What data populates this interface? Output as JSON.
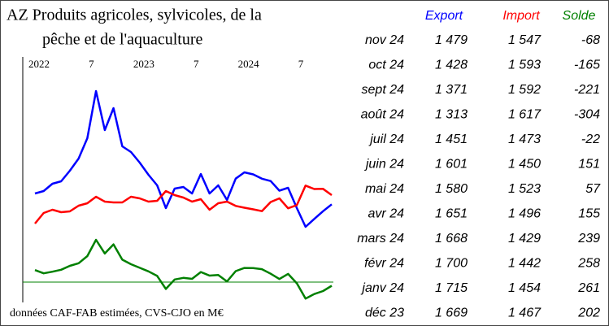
{
  "chart_data": {
    "type": "line",
    "title": [
      "AZ Produits agricoles, sylvicoles, de la",
      "pêche et de l'aquaculture"
    ],
    "note": "données CAF-FAB estimées, CVS-CJO en M€",
    "x": [
      "2022-01",
      "2022-02",
      "2022-03",
      "2022-04",
      "2022-05",
      "2022-06",
      "2022-07",
      "2022-08",
      "2022-09",
      "2022-10",
      "2022-11",
      "2022-12",
      "2023-01",
      "2023-02",
      "2023-03",
      "2023-04",
      "2023-05",
      "2023-06",
      "2023-07",
      "2023-08",
      "2023-09",
      "2023-10",
      "2023-11",
      "2023-12",
      "2024-01",
      "2024-02",
      "2024-03",
      "2024-04",
      "2024-05",
      "2024-06",
      "2024-07",
      "2024-08",
      "2024-09",
      "2024-10",
      "2024-11"
    ],
    "xticks": [
      {
        "value": "2022-01",
        "label": "2022"
      },
      {
        "value": "2022-07",
        "label": "7"
      },
      {
        "value": "2023-01",
        "label": "2023"
      },
      {
        "value": "2023-07",
        "label": "7"
      },
      {
        "value": "2024-01",
        "label": "2024"
      },
      {
        "value": "2024-07",
        "label": "7"
      }
    ],
    "ylim": [
      767,
      2477
    ],
    "y2lim": [
      -345,
      3930
    ],
    "series": [
      {
        "name": "Export",
        "color": "#0000ff",
        "values": [
          1559,
          1577,
          1631,
          1649,
          1727,
          1817,
          1967,
          2315,
          2027,
          2189,
          1907,
          1865,
          1787,
          1697,
          1619,
          1451,
          1595,
          1607,
          1559,
          1703,
          1559,
          1619,
          1511,
          1669,
          1715,
          1700,
          1668,
          1651,
          1580,
          1601,
          1451,
          1313,
          1371,
          1428,
          1479
        ]
      },
      {
        "name": "Import",
        "color": "#ff0000",
        "values": [
          1337,
          1415,
          1439,
          1421,
          1427,
          1469,
          1487,
          1535,
          1499,
          1493,
          1493,
          1535,
          1523,
          1499,
          1505,
          1577,
          1547,
          1529,
          1499,
          1517,
          1439,
          1487,
          1499,
          1467,
          1454,
          1442,
          1429,
          1496,
          1523,
          1450,
          1473,
          1617,
          1592,
          1593,
          1547
        ]
      },
      {
        "name": "Solde",
        "color": "#008000",
        "axis": "y2",
        "values": [
          222,
          162,
          192,
          228,
          300,
          348,
          480,
          780,
          528,
          696,
          414,
          330,
          264,
          198,
          114,
          -126,
          48,
          78,
          60,
          186,
          120,
          132,
          12,
          202,
          261,
          258,
          239,
          155,
          57,
          151,
          -22,
          -304,
          -221,
          -165,
          -68
        ]
      }
    ],
    "table": {
      "rows": [
        [
          "nov 24",
          "1 479",
          "1 547",
          "-68"
        ],
        [
          "oct 24",
          "1 428",
          "1 593",
          "-165"
        ],
        [
          "sept 24",
          "1 371",
          "1 592",
          "-221"
        ],
        [
          "août 24",
          "1 313",
          "1 617",
          "-304"
        ],
        [
          "juil 24",
          "1 451",
          "1 473",
          "-22"
        ],
        [
          "juin 24",
          "1 601",
          "1 450",
          "151"
        ],
        [
          "mai 24",
          "1 580",
          "1 523",
          "57"
        ],
        [
          "avr 24",
          "1 651",
          "1 496",
          "155"
        ],
        [
          "mars 24",
          "1 668",
          "1 429",
          "239"
        ],
        [
          "févr 24",
          "1 700",
          "1 442",
          "258"
        ],
        [
          "janv 24",
          "1 715",
          "1 454",
          "261"
        ],
        [
          "déc 23",
          "1 669",
          "1 467",
          "202"
        ]
      ]
    }
  }
}
